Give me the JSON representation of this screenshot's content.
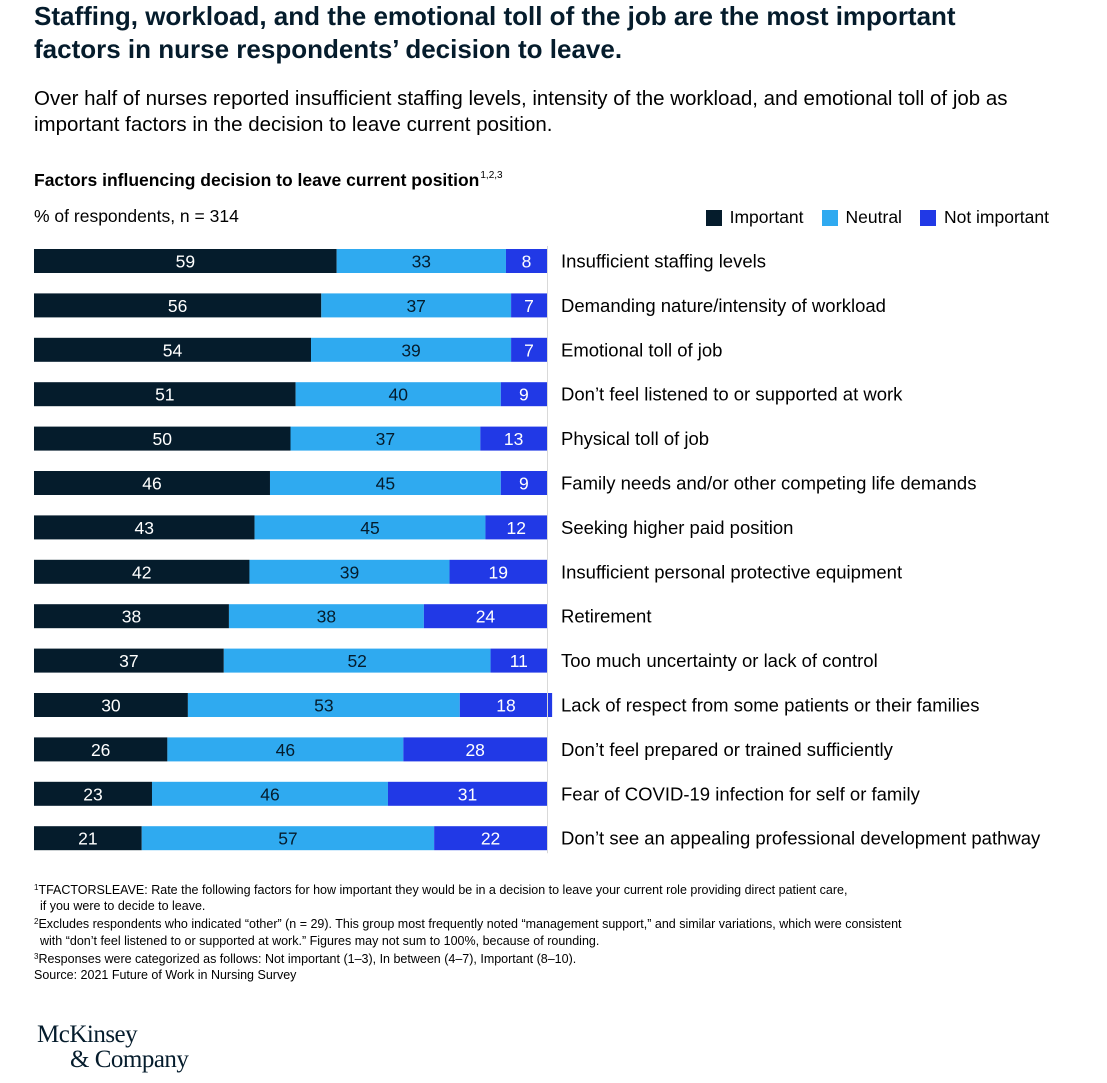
{
  "title": "Staffing, workload, and the emotional toll of the job are the most important factors in nurse respondents’ decision to leave.",
  "subtitle": "Over half of nurses reported insufficient staffing levels, intensity of the workload, and emotional toll of job as important factors in the decision to leave current position.",
  "chart_title": "Factors influencing decision to leave current position",
  "chart_title_sup": "1,2,3",
  "unit_label": "% of respondents, n = 314",
  "colors": {
    "important": "#051c2c",
    "neutral": "#2faaf0",
    "not_important": "#2139e6"
  },
  "chart_data": {
    "type": "bar",
    "orientation": "horizontal",
    "stacked": true,
    "xlim": [
      0,
      100
    ],
    "legend_position": "top-right",
    "categories": [
      "Insufficient staffing levels",
      "Demanding nature/intensity of workload",
      "Emotional toll of job",
      "Don’t feel listened to or supported at work",
      "Physical toll of job",
      "Family needs and/or other competing life demands",
      "Seeking higher paid position",
      "Insufficient personal protective equipment",
      "Retirement",
      "Too much uncertainty or lack of control",
      "Lack of respect from some patients or their families",
      "Don’t feel prepared or trained sufficiently",
      "Fear of COVID-19 infection for self or family",
      "Don’t see an appealing professional development pathway"
    ],
    "series": [
      {
        "name": "Important",
        "values": [
          59,
          56,
          54,
          51,
          50,
          46,
          43,
          42,
          38,
          37,
          30,
          26,
          23,
          21
        ]
      },
      {
        "name": "Neutral",
        "values": [
          33,
          37,
          39,
          40,
          37,
          45,
          45,
          39,
          38,
          52,
          53,
          46,
          46,
          57
        ]
      },
      {
        "name": "Not important",
        "values": [
          8,
          7,
          7,
          9,
          13,
          9,
          12,
          19,
          24,
          11,
          18,
          28,
          31,
          22
        ]
      }
    ]
  },
  "footnotes": [
    {
      "num": "1",
      "lines": [
        "TFACTORSLEAVE: Rate the following factors for how important they would be in a decision to leave your current role providing direct patient care,",
        "if you were to decide to leave."
      ]
    },
    {
      "num": "2",
      "lines": [
        "Excludes respondents who indicated “other” (n = 29). This group most frequently noted “management support,” and similar variations, which were consistent",
        "with “don’t feel listened to or supported at work.” Figures may not sum to 100%, because of rounding."
      ]
    },
    {
      "num": "3",
      "lines": [
        "Responses were categorized as follows: Not important (1–3), In between (4–7), Important (8–10)."
      ]
    }
  ],
  "source": "Source: 2021 Future of Work in Nursing Survey",
  "logo_line1": "McKinsey",
  "logo_line2": "& Company"
}
